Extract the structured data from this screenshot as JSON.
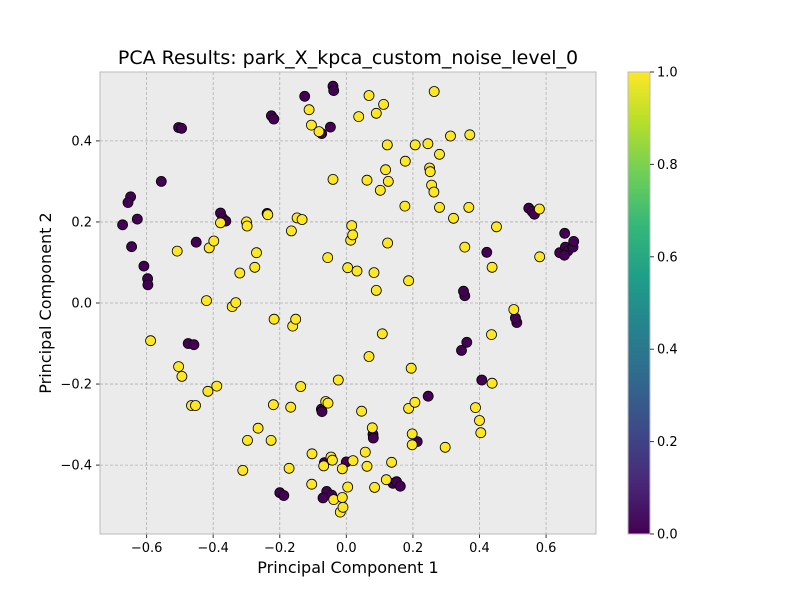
{
  "chart_data": {
    "type": "scatter",
    "title": "PCA Results: park_X_kpca_custom_noise_level_0",
    "xlabel": "Principal Component 1",
    "ylabel": "Principal Component 2",
    "xlim": [
      -0.74,
      0.75
    ],
    "ylim": [
      -0.57,
      0.57
    ],
    "xticks": [
      -0.6,
      -0.4,
      -0.2,
      0.0,
      0.2,
      0.4,
      0.6
    ],
    "xtick_labels": [
      "−0.6",
      "−0.4",
      "−0.2",
      "0.0",
      "0.2",
      "0.4",
      "0.6"
    ],
    "yticks": [
      -0.4,
      -0.2,
      0.0,
      0.2,
      0.4
    ],
    "ytick_labels": [
      "−0.4",
      "−0.2",
      "0.0",
      "0.2",
      "0.4"
    ],
    "grid": true,
    "plot_background": "#ebebeb",
    "grid_color": "#b0b0b0",
    "colormap": "viridis",
    "colorbar": {
      "range": [
        0.0,
        1.0
      ],
      "ticks": [
        0.0,
        0.2,
        0.4,
        0.6,
        0.8,
        1.0
      ],
      "tick_labels": [
        "0.0",
        "0.2",
        "0.4",
        "0.6",
        "0.8",
        "1.0"
      ],
      "stops": [
        "#440154",
        "#482878",
        "#3e4989",
        "#31688e",
        "#26828e",
        "#1f9e89",
        "#35b779",
        "#6ece58",
        "#b5de2b",
        "#fde725"
      ]
    },
    "class_colors": {
      "0": "#440154",
      "1": "#fde725"
    },
    "points": [
      {
        "x": -0.648,
        "y": 0.262,
        "c": 0
      },
      {
        "x": -0.656,
        "y": 0.248,
        "c": 0
      },
      {
        "x": -0.628,
        "y": 0.207,
        "c": 0
      },
      {
        "x": -0.672,
        "y": 0.193,
        "c": 0
      },
      {
        "x": -0.645,
        "y": 0.139,
        "c": 0
      },
      {
        "x": -0.608,
        "y": 0.091,
        "c": 0
      },
      {
        "x": -0.597,
        "y": 0.06,
        "c": 0
      },
      {
        "x": -0.596,
        "y": 0.045,
        "c": 0
      },
      {
        "x": -0.556,
        "y": 0.3,
        "c": 0
      },
      {
        "x": -0.504,
        "y": 0.433,
        "c": 0
      },
      {
        "x": -0.495,
        "y": 0.431,
        "c": 0
      },
      {
        "x": -0.451,
        "y": 0.15,
        "c": 0
      },
      {
        "x": -0.378,
        "y": 0.222,
        "c": 0
      },
      {
        "x": -0.371,
        "y": 0.209,
        "c": 0
      },
      {
        "x": -0.362,
        "y": 0.202,
        "c": 0
      },
      {
        "x": -0.238,
        "y": 0.221,
        "c": 0
      },
      {
        "x": -0.225,
        "y": 0.462,
        "c": 0
      },
      {
        "x": -0.218,
        "y": 0.454,
        "c": 0
      },
      {
        "x": -0.125,
        "y": 0.51,
        "c": 0
      },
      {
        "x": -0.074,
        "y": 0.418,
        "c": 0
      },
      {
        "x": -0.048,
        "y": 0.434,
        "c": 0
      },
      {
        "x": -0.04,
        "y": 0.535,
        "c": 0
      },
      {
        "x": -0.038,
        "y": 0.524,
        "c": 0
      },
      {
        "x": -0.475,
        "y": -0.1,
        "c": 0
      },
      {
        "x": -0.458,
        "y": -0.103,
        "c": 0
      },
      {
        "x": -0.2,
        "y": -0.468,
        "c": 0
      },
      {
        "x": -0.188,
        "y": -0.475,
        "c": 0
      },
      {
        "x": -0.075,
        "y": -0.262,
        "c": 0
      },
      {
        "x": -0.073,
        "y": -0.268,
        "c": 0
      },
      {
        "x": -0.066,
        "y": -0.394,
        "c": 0
      },
      {
        "x": -0.059,
        "y": -0.465,
        "c": 0
      },
      {
        "x": -0.044,
        "y": -0.474,
        "c": 0
      },
      {
        "x": -0.07,
        "y": -0.481,
        "c": 0
      },
      {
        "x": 0.0,
        "y": -0.392,
        "c": 0
      },
      {
        "x": 0.08,
        "y": -0.324,
        "c": 0
      },
      {
        "x": 0.081,
        "y": -0.333,
        "c": 0
      },
      {
        "x": 0.14,
        "y": -0.445,
        "c": 0
      },
      {
        "x": 0.151,
        "y": -0.441,
        "c": 0
      },
      {
        "x": 0.162,
        "y": -0.452,
        "c": 0
      },
      {
        "x": 0.213,
        "y": -0.342,
        "c": 0
      },
      {
        "x": 0.246,
        "y": -0.23,
        "c": 0
      },
      {
        "x": 0.346,
        "y": -0.117,
        "c": 0
      },
      {
        "x": 0.362,
        "y": -0.097,
        "c": 0
      },
      {
        "x": 0.356,
        "y": 0.018,
        "c": 0
      },
      {
        "x": 0.352,
        "y": 0.029,
        "c": 0
      },
      {
        "x": 0.422,
        "y": 0.125,
        "c": 0
      },
      {
        "x": 0.407,
        "y": -0.19,
        "c": 0
      },
      {
        "x": 0.512,
        "y": -0.048,
        "c": 0
      },
      {
        "x": 0.508,
        "y": -0.037,
        "c": 0
      },
      {
        "x": 0.548,
        "y": 0.234,
        "c": 0
      },
      {
        "x": 0.558,
        "y": 0.226,
        "c": 0
      },
      {
        "x": 0.565,
        "y": 0.219,
        "c": 0
      },
      {
        "x": 0.641,
        "y": 0.124,
        "c": 0
      },
      {
        "x": 0.656,
        "y": 0.172,
        "c": 0
      },
      {
        "x": 0.658,
        "y": 0.138,
        "c": 0
      },
      {
        "x": 0.665,
        "y": 0.128,
        "c": 0
      },
      {
        "x": 0.655,
        "y": 0.118,
        "c": 0
      },
      {
        "x": 0.681,
        "y": 0.138,
        "c": 0
      },
      {
        "x": 0.683,
        "y": 0.152,
        "c": 0
      },
      {
        "x": -0.508,
        "y": 0.128,
        "c": 1
      },
      {
        "x": -0.588,
        "y": -0.093,
        "c": 1
      },
      {
        "x": -0.504,
        "y": -0.157,
        "c": 1
      },
      {
        "x": -0.494,
        "y": -0.181,
        "c": 1
      },
      {
        "x": -0.465,
        "y": -0.253,
        "c": 1
      },
      {
        "x": -0.453,
        "y": -0.253,
        "c": 1
      },
      {
        "x": -0.42,
        "y": 0.006,
        "c": 1
      },
      {
        "x": -0.416,
        "y": -0.218,
        "c": 1
      },
      {
        "x": -0.412,
        "y": 0.136,
        "c": 1
      },
      {
        "x": -0.398,
        "y": 0.153,
        "c": 1
      },
      {
        "x": -0.389,
        "y": -0.205,
        "c": 1
      },
      {
        "x": -0.378,
        "y": 0.198,
        "c": 1
      },
      {
        "x": -0.343,
        "y": -0.009,
        "c": 1
      },
      {
        "x": -0.332,
        "y": 0.001,
        "c": 1
      },
      {
        "x": -0.32,
        "y": 0.074,
        "c": 1
      },
      {
        "x": -0.311,
        "y": -0.413,
        "c": 1
      },
      {
        "x": -0.3,
        "y": 0.2,
        "c": 1
      },
      {
        "x": -0.298,
        "y": 0.19,
        "c": 1
      },
      {
        "x": -0.297,
        "y": -0.339,
        "c": 1
      },
      {
        "x": -0.275,
        "y": 0.088,
        "c": 1
      },
      {
        "x": -0.27,
        "y": 0.124,
        "c": 1
      },
      {
        "x": -0.265,
        "y": -0.309,
        "c": 1
      },
      {
        "x": -0.236,
        "y": 0.218,
        "c": 1
      },
      {
        "x": -0.226,
        "y": -0.339,
        "c": 1
      },
      {
        "x": -0.219,
        "y": -0.251,
        "c": 1
      },
      {
        "x": -0.217,
        "y": -0.04,
        "c": 1
      },
      {
        "x": -0.172,
        "y": -0.408,
        "c": 1
      },
      {
        "x": -0.167,
        "y": -0.257,
        "c": 1
      },
      {
        "x": -0.165,
        "y": 0.178,
        "c": 1
      },
      {
        "x": -0.161,
        "y": -0.057,
        "c": 1
      },
      {
        "x": -0.152,
        "y": -0.04,
        "c": 1
      },
      {
        "x": -0.148,
        "y": 0.21,
        "c": 1
      },
      {
        "x": -0.133,
        "y": 0.206,
        "c": 1
      },
      {
        "x": -0.137,
        "y": -0.206,
        "c": 1
      },
      {
        "x": -0.112,
        "y": 0.477,
        "c": 1
      },
      {
        "x": -0.105,
        "y": 0.439,
        "c": 1
      },
      {
        "x": -0.103,
        "y": -0.372,
        "c": 1
      },
      {
        "x": -0.104,
        "y": -0.447,
        "c": 1
      },
      {
        "x": -0.082,
        "y": 0.423,
        "c": 1
      },
      {
        "x": -0.068,
        "y": -0.402,
        "c": 1
      },
      {
        "x": -0.062,
        "y": -0.243,
        "c": 1
      },
      {
        "x": -0.055,
        "y": -0.247,
        "c": 1
      },
      {
        "x": -0.056,
        "y": 0.112,
        "c": 1
      },
      {
        "x": -0.046,
        "y": -0.38,
        "c": 1
      },
      {
        "x": -0.042,
        "y": -0.388,
        "c": 1
      },
      {
        "x": -0.04,
        "y": 0.305,
        "c": 1
      },
      {
        "x": -0.038,
        "y": -0.485,
        "c": 1
      },
      {
        "x": -0.024,
        "y": -0.19,
        "c": 1
      },
      {
        "x": -0.018,
        "y": -0.516,
        "c": 1
      },
      {
        "x": -0.012,
        "y": -0.409,
        "c": 1
      },
      {
        "x": -0.012,
        "y": -0.48,
        "c": 1
      },
      {
        "x": -0.01,
        "y": -0.504,
        "c": 1
      },
      {
        "x": 0.004,
        "y": -0.454,
        "c": 1
      },
      {
        "x": 0.004,
        "y": 0.087,
        "c": 1
      },
      {
        "x": 0.013,
        "y": 0.155,
        "c": 1
      },
      {
        "x": 0.016,
        "y": 0.191,
        "c": 1
      },
      {
        "x": 0.019,
        "y": 0.168,
        "c": 1
      },
      {
        "x": 0.02,
        "y": -0.389,
        "c": 1
      },
      {
        "x": 0.032,
        "y": 0.079,
        "c": 1
      },
      {
        "x": 0.037,
        "y": 0.46,
        "c": 1
      },
      {
        "x": 0.046,
        "y": -0.267,
        "c": 1
      },
      {
        "x": 0.057,
        "y": -0.368,
        "c": 1
      },
      {
        "x": 0.062,
        "y": -0.403,
        "c": 1
      },
      {
        "x": 0.062,
        "y": 0.303,
        "c": 1
      },
      {
        "x": 0.068,
        "y": 0.512,
        "c": 1
      },
      {
        "x": 0.068,
        "y": -0.132,
        "c": 1
      },
      {
        "x": 0.078,
        "y": -0.308,
        "c": 1
      },
      {
        "x": 0.083,
        "y": 0.075,
        "c": 1
      },
      {
        "x": 0.085,
        "y": -0.455,
        "c": 1
      },
      {
        "x": 0.09,
        "y": 0.468,
        "c": 1
      },
      {
        "x": 0.09,
        "y": 0.031,
        "c": 1
      },
      {
        "x": 0.102,
        "y": 0.278,
        "c": 1
      },
      {
        "x": 0.108,
        "y": -0.076,
        "c": 1
      },
      {
        "x": 0.112,
        "y": 0.49,
        "c": 1
      },
      {
        "x": 0.118,
        "y": 0.329,
        "c": 1
      },
      {
        "x": 0.12,
        "y": -0.436,
        "c": 1
      },
      {
        "x": 0.123,
        "y": 0.39,
        "c": 1
      },
      {
        "x": 0.124,
        "y": 0.148,
        "c": 1
      },
      {
        "x": 0.126,
        "y": 0.3,
        "c": 1
      },
      {
        "x": 0.136,
        "y": -0.393,
        "c": 1
      },
      {
        "x": 0.177,
        "y": 0.35,
        "c": 1
      },
      {
        "x": 0.176,
        "y": 0.239,
        "c": 1
      },
      {
        "x": 0.187,
        "y": 0.055,
        "c": 1
      },
      {
        "x": 0.187,
        "y": -0.26,
        "c": 1
      },
      {
        "x": 0.195,
        "y": -0.161,
        "c": 1
      },
      {
        "x": 0.198,
        "y": -0.323,
        "c": 1
      },
      {
        "x": 0.198,
        "y": -0.35,
        "c": 1
      },
      {
        "x": 0.206,
        "y": -0.245,
        "c": 1
      },
      {
        "x": 0.207,
        "y": 0.39,
        "c": 1
      },
      {
        "x": 0.245,
        "y": 0.393,
        "c": 1
      },
      {
        "x": 0.25,
        "y": 0.333,
        "c": 1
      },
      {
        "x": 0.252,
        "y": 0.324,
        "c": 1
      },
      {
        "x": 0.256,
        "y": 0.291,
        "c": 1
      },
      {
        "x": 0.263,
        "y": 0.274,
        "c": 1
      },
      {
        "x": 0.264,
        "y": 0.522,
        "c": 1
      },
      {
        "x": 0.28,
        "y": 0.367,
        "c": 1
      },
      {
        "x": 0.28,
        "y": 0.236,
        "c": 1
      },
      {
        "x": 0.297,
        "y": -0.356,
        "c": 1
      },
      {
        "x": 0.313,
        "y": 0.412,
        "c": 1
      },
      {
        "x": 0.322,
        "y": 0.209,
        "c": 1
      },
      {
        "x": 0.356,
        "y": 0.138,
        "c": 1
      },
      {
        "x": 0.368,
        "y": 0.236,
        "c": 1
      },
      {
        "x": 0.371,
        "y": 0.415,
        "c": 1
      },
      {
        "x": 0.388,
        "y": -0.258,
        "c": 1
      },
      {
        "x": 0.4,
        "y": -0.29,
        "c": 1
      },
      {
        "x": 0.404,
        "y": -0.32,
        "c": 1
      },
      {
        "x": 0.436,
        "y": -0.078,
        "c": 1
      },
      {
        "x": 0.438,
        "y": -0.198,
        "c": 1
      },
      {
        "x": 0.438,
        "y": 0.088,
        "c": 1
      },
      {
        "x": 0.451,
        "y": 0.188,
        "c": 1
      },
      {
        "x": 0.503,
        "y": -0.016,
        "c": 1
      },
      {
        "x": 0.58,
        "y": 0.232,
        "c": 1
      },
      {
        "x": 0.581,
        "y": 0.114,
        "c": 1
      }
    ]
  }
}
